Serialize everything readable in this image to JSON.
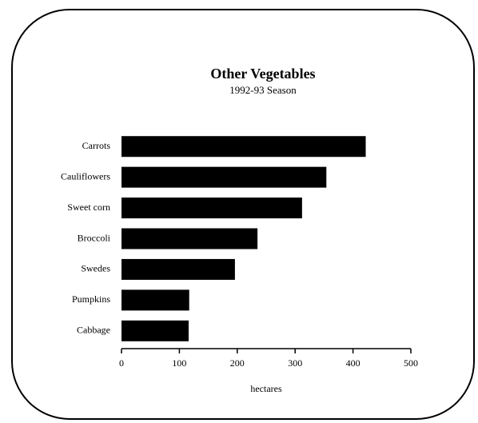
{
  "chart_data": {
    "type": "bar",
    "orientation": "horizontal",
    "title": "Other Vegetables",
    "subtitle": "1992-93 Season",
    "categories": [
      "Carrots",
      "Cauliflowers",
      "Sweet corn",
      "Broccoli",
      "Swedes",
      "Pumpkins",
      "Cabbage"
    ],
    "values": [
      422,
      354,
      312,
      235,
      196,
      117,
      116
    ],
    "color": "#000000",
    "x_label": "hectares",
    "xlim": [
      0,
      500
    ],
    "xticks": [
      0,
      100,
      200,
      300,
      400,
      500
    ],
    "grid": false
  }
}
